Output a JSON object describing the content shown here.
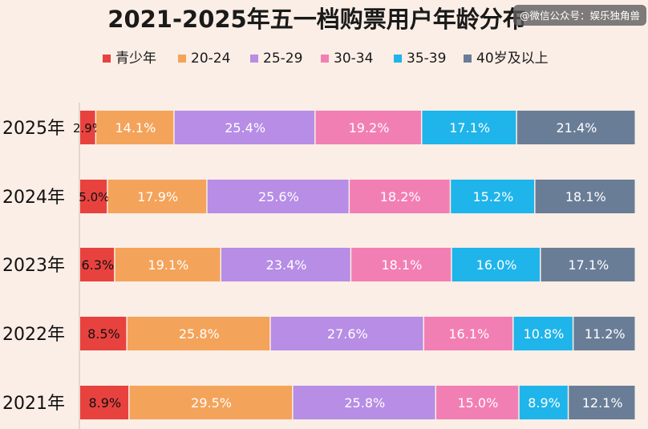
{
  "chart_data": {
    "type": "bar",
    "orientation": "horizontal",
    "stacked": true,
    "title": "2021-2025年五一档购票用户年龄分布",
    "watermark": "@微信公众号：娱乐独角兽",
    "legend_position": "top",
    "categories": [
      "2025年",
      "2024年",
      "2023年",
      "2022年",
      "2021年"
    ],
    "series": [
      {
        "name": "青少年",
        "color": "#e8423f",
        "values": [
          2.9,
          5.0,
          6.3,
          8.5,
          8.9
        ],
        "labels": [
          "2.9%",
          "5.0%",
          "6.3%",
          "8.5%",
          "8.9%"
        ]
      },
      {
        "name": "20-24",
        "color": "#f4a35a",
        "values": [
          14.1,
          17.9,
          19.1,
          25.8,
          29.5
        ],
        "labels": [
          "14.1%",
          "17.9%",
          "19.1%",
          "25.8%",
          "29.5%"
        ]
      },
      {
        "name": "25-29",
        "color": "#b78de6",
        "values": [
          25.4,
          25.6,
          23.4,
          27.6,
          25.8
        ],
        "labels": [
          "25.4%",
          "25.6%",
          "23.4%",
          "27.6%",
          "25.8%"
        ]
      },
      {
        "name": "30-34",
        "color": "#f27fb3",
        "values": [
          19.2,
          18.2,
          18.1,
          16.1,
          15.0
        ],
        "labels": [
          "19.2%",
          "18.2%",
          "18.1%",
          "16.1%",
          "15.0%"
        ]
      },
      {
        "name": "35-39",
        "color": "#1fb4ea",
        "values": [
          17.1,
          15.2,
          16.0,
          10.8,
          8.9
        ],
        "labels": [
          "17.1%",
          "15.2%",
          "16.0%",
          "10.8%",
          "8.9%"
        ]
      },
      {
        "name": "40岁及以上",
        "color": "#6a7d97",
        "values": [
          21.4,
          18.1,
          17.1,
          11.2,
          12.1
        ],
        "labels": [
          "21.4%",
          "18.1%",
          "17.1%",
          "11.2%",
          "12.1%"
        ]
      }
    ],
    "xlim": [
      0,
      100
    ],
    "grid": false
  }
}
